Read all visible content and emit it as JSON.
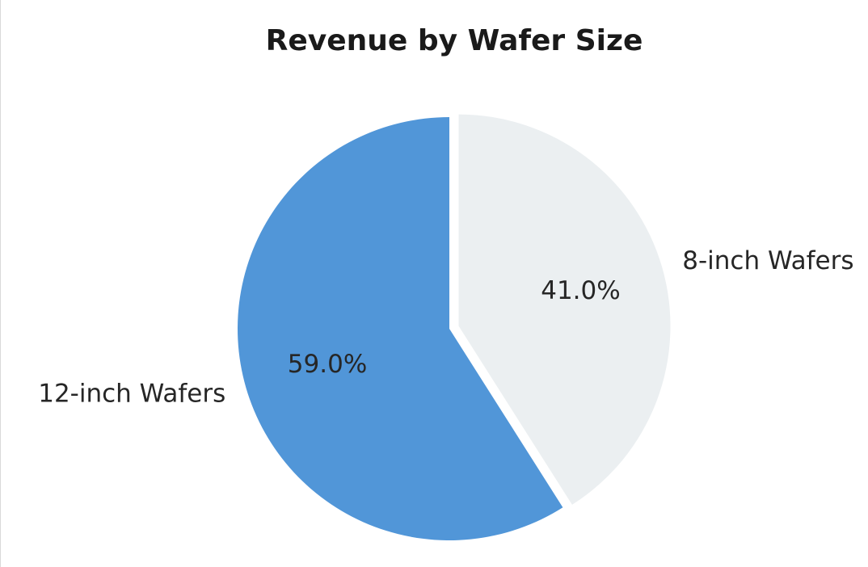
{
  "chart_data": {
    "type": "pie",
    "title": "Revenue by Wafer Size",
    "slices": [
      {
        "label": "8-inch Wafers",
        "value": 41.0,
        "pct_label": "41.0%",
        "color": "#ebeff1",
        "exploded": true
      },
      {
        "label": "12-inch Wafers",
        "value": 59.0,
        "pct_label": "59.0%",
        "color": "#5196d8",
        "exploded": false
      }
    ],
    "start_angle_deg": 90,
    "direction": "clockwise"
  }
}
